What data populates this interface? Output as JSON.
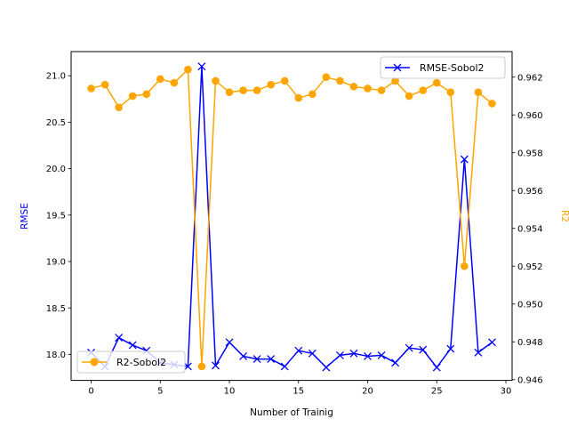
{
  "chart_data": {
    "type": "line",
    "xlabel": "Number of Trainig",
    "xlim": [
      -1.45,
      30.45
    ],
    "xticks": [
      0,
      5,
      10,
      15,
      20,
      25,
      30
    ],
    "left_axis": {
      "label": "RMSE",
      "label_color": "#0000ff",
      "ylim": [
        17.72,
        21.26
      ],
      "ticks": [
        "18.0",
        "18.5",
        "19.0",
        "19.5",
        "20.0",
        "20.5",
        "21.0"
      ],
      "tick_values": [
        18.0,
        18.5,
        19.0,
        19.5,
        20.0,
        20.5,
        21.0
      ]
    },
    "right_axis": {
      "label": "R2",
      "label_color": "#ffa500",
      "ylim": [
        0.94596,
        0.96335
      ],
      "ticks": [
        "0.946",
        "0.948",
        "0.950",
        "0.952",
        "0.954",
        "0.956",
        "0.958",
        "0.960",
        "0.962"
      ],
      "tick_values": [
        0.946,
        0.948,
        0.95,
        0.952,
        0.954,
        0.956,
        0.958,
        0.96,
        0.962
      ]
    },
    "series": [
      {
        "name": "RMSE-Sobol2",
        "axis": "left",
        "color": "#0000ff",
        "marker": "x",
        "x": [
          0,
          1,
          2,
          3,
          4,
          5,
          6,
          7,
          8,
          9,
          10,
          11,
          12,
          13,
          14,
          15,
          16,
          17,
          18,
          19,
          20,
          21,
          22,
          23,
          24,
          25,
          26,
          27,
          28,
          29
        ],
        "values": [
          18.02,
          17.87,
          18.18,
          18.1,
          18.04,
          17.91,
          17.89,
          17.87,
          21.1,
          17.88,
          18.13,
          17.98,
          17.95,
          17.95,
          17.87,
          18.04,
          18.01,
          17.86,
          17.99,
          18.01,
          17.98,
          17.99,
          17.91,
          18.07,
          18.05,
          17.86,
          18.06,
          20.1,
          18.02,
          18.13
        ]
      },
      {
        "name": "R2-Sobol2",
        "axis": "right",
        "color": "#ffa500",
        "marker": "o",
        "x": [
          0,
          1,
          2,
          3,
          4,
          5,
          6,
          7,
          8,
          9,
          10,
          11,
          12,
          13,
          14,
          15,
          16,
          17,
          18,
          19,
          20,
          21,
          22,
          23,
          24,
          25,
          26,
          27,
          28,
          29
        ],
        "values": [
          0.9614,
          0.9616,
          0.9604,
          0.961,
          0.9611,
          0.9619,
          0.9617,
          0.9624,
          0.9467,
          0.9618,
          0.9612,
          0.9613,
          0.9613,
          0.9616,
          0.9618,
          0.9609,
          0.9611,
          0.962,
          0.9618,
          0.9615,
          0.9614,
          0.9613,
          0.9618,
          0.961,
          0.9613,
          0.9617,
          0.9612,
          0.952,
          0.9612,
          0.9606
        ]
      }
    ],
    "legends": [
      {
        "placement": "top-right",
        "entry": "RMSE-Sobol2"
      },
      {
        "placement": "lower-left",
        "entry": "R2-Sobol2"
      }
    ]
  }
}
